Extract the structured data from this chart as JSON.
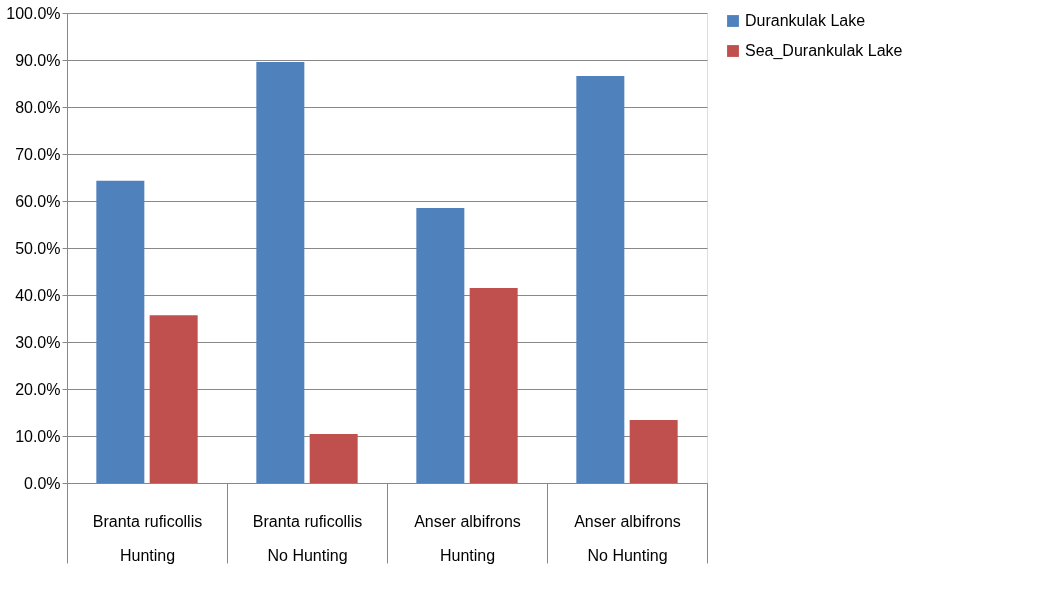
{
  "chart_data": {
    "type": "bar",
    "categories": [
      "Branta ruficollis\nHunting",
      "Branta ruficollis\nNo Hunting",
      "Anser albifrons\nHunting",
      "Anser albifrons\nNo Hunting"
    ],
    "series": [
      {
        "name": "Durankulak Lake",
        "color": "#4f81bd",
        "values": [
          64.3,
          89.6,
          58.5,
          86.6
        ]
      },
      {
        "name": "Sea_Durankulak Lake",
        "color": "#c0504d",
        "values": [
          35.7,
          10.4,
          41.5,
          13.4
        ]
      }
    ],
    "ylim": [
      0,
      100
    ],
    "yticks": [
      {
        "value": 0,
        "label": "0.0%"
      },
      {
        "value": 10,
        "label": "10.0%"
      },
      {
        "value": 20,
        "label": "20.0%"
      },
      {
        "value": 30,
        "label": "30.0%"
      },
      {
        "value": 40,
        "label": "40.0%"
      },
      {
        "value": 50,
        "label": "50.0%"
      },
      {
        "value": 60,
        "label": "60.0%"
      },
      {
        "value": 70,
        "label": "70.0%"
      },
      {
        "value": 80,
        "label": "80.0%"
      },
      {
        "value": 90,
        "label": "90.0%"
      },
      {
        "value": 100,
        "label": "100.0%"
      }
    ],
    "grid": "y",
    "legend": "right"
  }
}
